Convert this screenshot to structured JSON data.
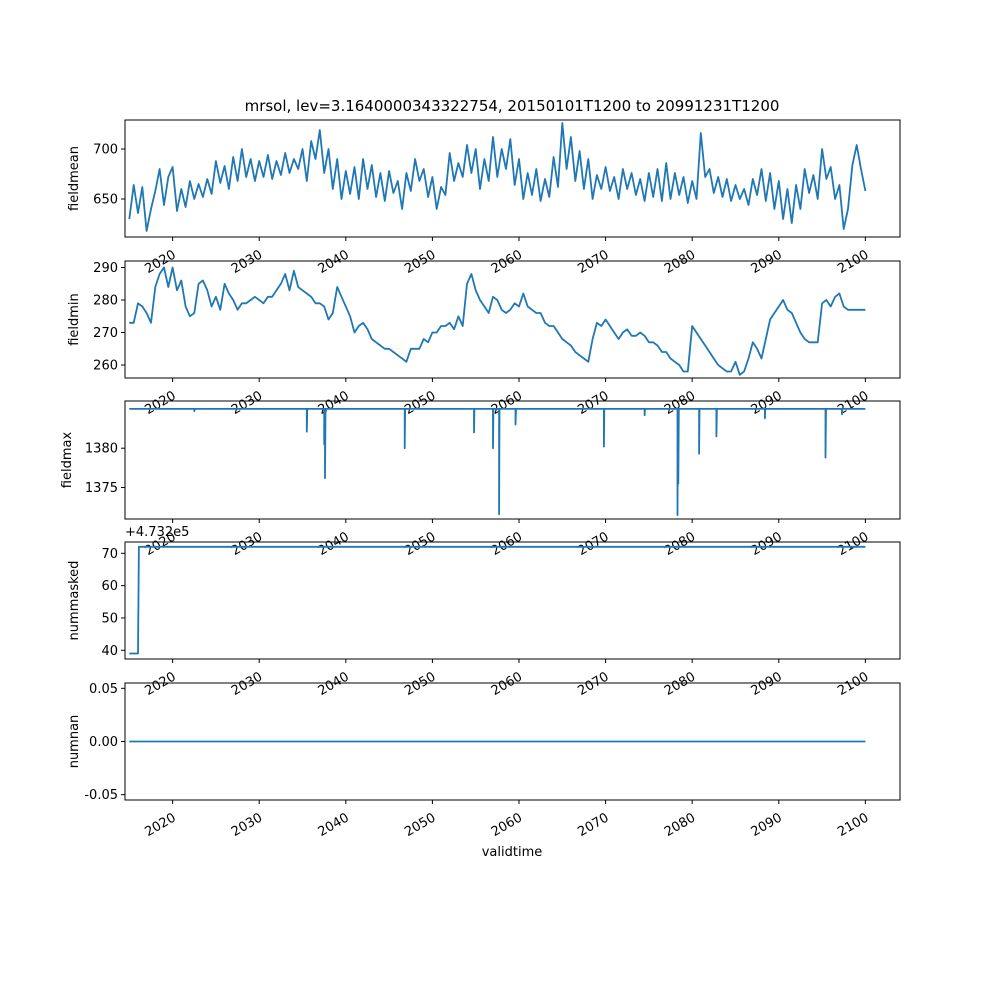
{
  "title": "mrsol, lev=3.1640000343322754, 20150101T1200 to 20991231T1200",
  "xlabel": "validtime",
  "colors": {
    "line": "#1f77b4"
  },
  "chart_data": [
    {
      "type": "line",
      "ylabel": "fieldmean",
      "xlim": [
        2014.5,
        2104
      ],
      "ylim": [
        612,
        729
      ],
      "yticks": [
        "650",
        "700"
      ],
      "ytick_values": [
        650,
        700
      ],
      "xticks": [
        "2020",
        "2030",
        "2040",
        "2050",
        "2060",
        "2070",
        "2080",
        "2090",
        "2100"
      ],
      "xtick_values": [
        2020,
        2030,
        2040,
        2050,
        2060,
        2070,
        2080,
        2090,
        2100
      ],
      "x": [
        2015.0,
        2015.5,
        2016.0,
        2016.5,
        2017.0,
        2017.5,
        2018.0,
        2018.5,
        2019.0,
        2019.5,
        2020.0,
        2020.5,
        2021.0,
        2021.5,
        2022.0,
        2022.5,
        2023.0,
        2023.5,
        2024.0,
        2024.5,
        2025.0,
        2025.5,
        2026.0,
        2026.5,
        2027.0,
        2027.5,
        2028.0,
        2028.5,
        2029.0,
        2029.5,
        2030.0,
        2030.5,
        2031.0,
        2031.5,
        2032.0,
        2032.5,
        2033.0,
        2033.5,
        2034.0,
        2034.5,
        2035.0,
        2035.5,
        2036.0,
        2036.5,
        2037.0,
        2037.5,
        2038.0,
        2038.5,
        2039.0,
        2039.5,
        2040.0,
        2040.5,
        2041.0,
        2041.5,
        2042.0,
        2042.5,
        2043.0,
        2043.5,
        2044.0,
        2044.5,
        2045.0,
        2045.5,
        2046.0,
        2046.5,
        2047.0,
        2047.5,
        2048.0,
        2048.5,
        2049.0,
        2049.5,
        2050.0,
        2050.5,
        2051.0,
        2051.5,
        2052.0,
        2052.5,
        2053.0,
        2053.5,
        2054.0,
        2054.5,
        2055.0,
        2055.5,
        2056.0,
        2056.5,
        2057.0,
        2057.5,
        2058.0,
        2058.5,
        2059.0,
        2059.5,
        2060.0,
        2060.5,
        2061.0,
        2061.5,
        2062.0,
        2062.5,
        2063.0,
        2063.5,
        2064.0,
        2064.5,
        2065.0,
        2065.5,
        2066.0,
        2066.5,
        2067.0,
        2067.5,
        2068.0,
        2068.5,
        2069.0,
        2069.5,
        2070.0,
        2070.5,
        2071.0,
        2071.5,
        2072.0,
        2072.5,
        2073.0,
        2073.5,
        2074.0,
        2074.5,
        2075.0,
        2075.5,
        2076.0,
        2076.5,
        2077.0,
        2077.5,
        2078.0,
        2078.5,
        2079.0,
        2079.5,
        2080.0,
        2080.5,
        2081.0,
        2081.5,
        2082.0,
        2082.5,
        2083.0,
        2083.5,
        2084.0,
        2084.5,
        2085.0,
        2085.5,
        2086.0,
        2086.5,
        2087.0,
        2087.5,
        2088.0,
        2088.5,
        2089.0,
        2089.5,
        2090.0,
        2090.5,
        2091.0,
        2091.5,
        2092.0,
        2092.5,
        2093.0,
        2093.5,
        2094.0,
        2094.5,
        2095.0,
        2095.5,
        2096.0,
        2096.5,
        2097.0,
        2097.5,
        2098.0,
        2098.5,
        2099.0,
        2099.5,
        2100.0
      ],
      "y": [
        630,
        664,
        636,
        662,
        618,
        640,
        658,
        680,
        644,
        672,
        682,
        638,
        660,
        642,
        668,
        650,
        665,
        652,
        670,
        655,
        688,
        666,
        683,
        660,
        692,
        668,
        700,
        672,
        690,
        668,
        688,
        672,
        694,
        670,
        688,
        674,
        696,
        676,
        690,
        680,
        700,
        668,
        708,
        690,
        719,
        676,
        700,
        660,
        690,
        650,
        678,
        655,
        682,
        650,
        690,
        660,
        684,
        652,
        676,
        648,
        678,
        656,
        668,
        640,
        676,
        658,
        690,
        668,
        680,
        652,
        672,
        640,
        662,
        654,
        696,
        668,
        686,
        672,
        704,
        676,
        700,
        660,
        690,
        668,
        712,
        672,
        700,
        680,
        710,
        664,
        690,
        650,
        676,
        654,
        680,
        648,
        670,
        652,
        692,
        662,
        726,
        680,
        712,
        668,
        698,
        660,
        690,
        650,
        674,
        660,
        682,
        658,
        672,
        650,
        680,
        660,
        676,
        654,
        670,
        648,
        676,
        652,
        680,
        648,
        686,
        650,
        676,
        654,
        672,
        646,
        668,
        650,
        716,
        672,
        680,
        656,
        672,
        652,
        670,
        648,
        664,
        650,
        660,
        644,
        670,
        654,
        680,
        648,
        676,
        640,
        668,
        630,
        660,
        626,
        664,
        640,
        680,
        656,
        674,
        650,
        700,
        670,
        682,
        650,
        664,
        620,
        640,
        684,
        704,
        680,
        658
      ]
    },
    {
      "type": "line",
      "ylabel": "fieldmin",
      "xlim": [
        2014.5,
        2104
      ],
      "ylim": [
        256,
        292
      ],
      "yticks": [
        "260",
        "270",
        "280",
        "290"
      ],
      "ytick_values": [
        260,
        270,
        280,
        290
      ],
      "xticks": [
        "2020",
        "2030",
        "2040",
        "2050",
        "2060",
        "2070",
        "2080",
        "2090",
        "2100"
      ],
      "xtick_values": [
        2020,
        2030,
        2040,
        2050,
        2060,
        2070,
        2080,
        2090,
        2100
      ],
      "x": [
        2015.0,
        2015.5,
        2016.0,
        2016.5,
        2017.0,
        2017.5,
        2018.0,
        2018.5,
        2019.0,
        2019.5,
        2020.0,
        2020.5,
        2021.0,
        2021.5,
        2022.0,
        2022.5,
        2023.0,
        2023.5,
        2024.0,
        2024.5,
        2025.0,
        2025.5,
        2026.0,
        2026.5,
        2027.0,
        2027.5,
        2028.0,
        2028.5,
        2029.0,
        2029.5,
        2030.0,
        2030.5,
        2031.0,
        2031.5,
        2032.0,
        2032.5,
        2033.0,
        2033.5,
        2034.0,
        2034.5,
        2035.0,
        2035.5,
        2036.0,
        2036.5,
        2037.0,
        2037.5,
        2038.0,
        2038.5,
        2039.0,
        2039.5,
        2040.0,
        2040.5,
        2041.0,
        2041.5,
        2042.0,
        2042.5,
        2043.0,
        2043.5,
        2044.0,
        2044.5,
        2045.0,
        2045.5,
        2046.0,
        2046.5,
        2047.0,
        2047.5,
        2048.0,
        2048.5,
        2049.0,
        2049.5,
        2050.0,
        2050.5,
        2051.0,
        2051.5,
        2052.0,
        2052.5,
        2053.0,
        2053.5,
        2054.0,
        2054.5,
        2055.0,
        2055.5,
        2056.0,
        2056.5,
        2057.0,
        2057.5,
        2058.0,
        2058.5,
        2059.0,
        2059.5,
        2060.0,
        2060.5,
        2061.0,
        2061.5,
        2062.0,
        2062.5,
        2063.0,
        2063.5,
        2064.0,
        2064.5,
        2065.0,
        2065.5,
        2066.0,
        2066.5,
        2067.0,
        2067.5,
        2068.0,
        2068.5,
        2069.0,
        2069.5,
        2070.0,
        2070.5,
        2071.0,
        2071.5,
        2072.0,
        2072.5,
        2073.0,
        2073.5,
        2074.0,
        2074.5,
        2075.0,
        2075.5,
        2076.0,
        2076.5,
        2077.0,
        2077.5,
        2078.0,
        2078.5,
        2079.0,
        2079.5,
        2080.0,
        2080.5,
        2081.0,
        2081.5,
        2082.0,
        2082.5,
        2083.0,
        2083.5,
        2084.0,
        2084.5,
        2085.0,
        2085.5,
        2086.0,
        2086.5,
        2087.0,
        2087.5,
        2088.0,
        2088.5,
        2089.0,
        2089.5,
        2090.0,
        2090.5,
        2091.0,
        2091.5,
        2092.0,
        2092.5,
        2093.0,
        2093.5,
        2094.0,
        2094.5,
        2095.0,
        2095.5,
        2096.0,
        2096.5,
        2097.0,
        2097.5,
        2098.0,
        2098.5,
        2099.0,
        2099.5,
        2100.0
      ],
      "y": [
        273,
        273,
        279,
        278,
        276,
        273,
        284,
        288,
        290,
        284,
        290,
        283,
        286,
        278,
        275,
        276,
        285,
        286,
        283,
        278,
        281,
        277,
        285,
        282,
        280,
        277,
        279,
        279,
        280,
        281,
        280,
        279,
        281,
        281,
        283,
        285,
        288,
        283,
        289,
        284,
        283,
        282,
        281,
        279,
        279,
        278,
        274,
        276,
        284,
        281,
        278,
        275,
        270,
        272,
        273,
        271,
        268,
        267,
        266,
        265,
        265,
        264,
        263,
        262,
        261,
        265,
        265,
        265,
        268,
        267,
        270,
        270,
        272,
        272,
        273,
        271,
        275,
        272,
        285,
        288,
        283,
        280,
        278,
        276,
        281,
        280,
        277,
        276,
        277,
        279,
        278,
        282,
        278,
        277,
        276,
        276,
        273,
        272,
        272,
        270,
        268,
        267,
        266,
        264,
        263,
        262,
        261,
        268,
        273,
        272,
        274,
        272,
        270,
        268,
        270,
        271,
        269,
        269,
        270,
        269,
        267,
        267,
        266,
        264,
        264,
        262,
        261,
        260,
        258,
        258,
        272,
        270,
        268,
        266,
        264,
        262,
        260,
        259,
        258,
        258,
        261,
        257,
        258,
        262,
        267,
        265,
        262,
        268,
        274,
        276,
        278,
        280,
        277,
        276,
        273,
        270,
        268,
        267,
        267,
        267,
        279,
        280,
        278,
        281,
        282,
        278,
        277,
        277,
        277,
        277,
        277
      ]
    },
    {
      "type": "line",
      "ylabel": "fieldmax",
      "xlim": [
        2014.5,
        2104
      ],
      "ylim": [
        1371,
        1386
      ],
      "yticks": [
        "1375",
        "1380"
      ],
      "ytick_values": [
        1375,
        1380
      ],
      "xticks": [
        "2020",
        "2030",
        "2040",
        "2050",
        "2060",
        "2070",
        "2080",
        "2090",
        "2100"
      ],
      "xtick_values": [
        2020,
        2030,
        2040,
        2050,
        2060,
        2070,
        2080,
        2090,
        2100
      ],
      "baseline": 1385,
      "dips": [
        [
          2022.5,
          1384.7
        ],
        [
          2035.5,
          1382.1
        ],
        [
          2037.5,
          1380.5
        ],
        [
          2037.6,
          1376.2
        ],
        [
          2046.8,
          1380.0
        ],
        [
          2054.8,
          1382.0
        ],
        [
          2057.0,
          1380.0
        ],
        [
          2057.7,
          1371.6
        ],
        [
          2059.6,
          1383.0
        ],
        [
          2069.8,
          1380.2
        ],
        [
          2074.5,
          1384.2
        ],
        [
          2078.3,
          1371.5
        ],
        [
          2078.4,
          1375.5
        ],
        [
          2080.8,
          1379.3
        ],
        [
          2082.8,
          1381.5
        ],
        [
          2088.4,
          1383.8
        ],
        [
          2095.4,
          1378.8
        ],
        [
          2097.3,
          1384.3
        ]
      ]
    },
    {
      "type": "line",
      "ylabel": "nummasked",
      "offset_label": "+4.732e5",
      "xlim": [
        2014.5,
        2104
      ],
      "ylim": [
        37.3,
        73.5
      ],
      "yticks": [
        "40",
        "50",
        "60",
        "70"
      ],
      "ytick_values": [
        40,
        50,
        60,
        70
      ],
      "xticks": [
        "2020",
        "2030",
        "2040",
        "2050",
        "2060",
        "2070",
        "2080",
        "2090",
        "2100"
      ],
      "xtick_values": [
        2020,
        2030,
        2040,
        2050,
        2060,
        2070,
        2080,
        2090,
        2100
      ],
      "x": [
        2015.0,
        2016.0,
        2016.1,
        2100.0
      ],
      "y": [
        39,
        39,
        72,
        72
      ]
    },
    {
      "type": "line",
      "ylabel": "numnan",
      "xlim": [
        2014.5,
        2104
      ],
      "ylim": [
        -0.055,
        0.055
      ],
      "yticks": [
        "-0.05",
        "0.00",
        "0.05"
      ],
      "ytick_values": [
        -0.05,
        0,
        0.05
      ],
      "xticks": [
        "2020",
        "2030",
        "2040",
        "2050",
        "2060",
        "2070",
        "2080",
        "2090",
        "2100"
      ],
      "xtick_values": [
        2020,
        2030,
        2040,
        2050,
        2060,
        2070,
        2080,
        2090,
        2100
      ],
      "x": [
        2015.0,
        2100.0
      ],
      "y": [
        0,
        0
      ]
    }
  ]
}
